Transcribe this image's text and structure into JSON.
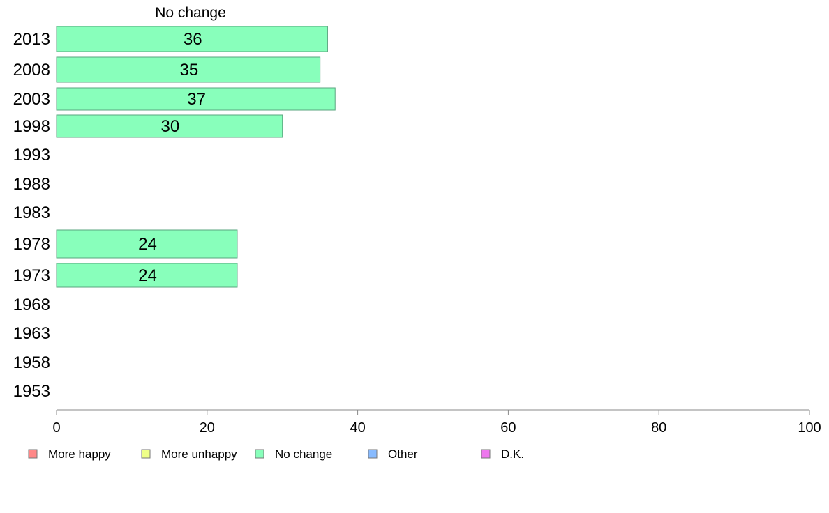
{
  "chart_data": {
    "type": "bar",
    "orientation": "horizontal",
    "title": "No change",
    "xlim": [
      0,
      100
    ],
    "x_ticks": [
      0,
      20,
      40,
      60,
      80,
      100
    ],
    "categories": [
      "2013",
      "2008",
      "2003",
      "1998",
      "1993",
      "1988",
      "1983",
      "1978",
      "1973",
      "1968",
      "1963",
      "1958",
      "1953"
    ],
    "series": [
      {
        "name": "No change",
        "color": "#88ffbb",
        "values": [
          36,
          35,
          37,
          30,
          null,
          null,
          null,
          24,
          24,
          null,
          null,
          null,
          null
        ],
        "value_labels": [
          "36",
          "35",
          "37",
          "30",
          "",
          "",
          "",
          "24",
          "24",
          "",
          "",
          "",
          ""
        ]
      }
    ],
    "legend": {
      "placement": "bottom",
      "items": [
        {
          "label": "More happy",
          "color": "#ff8888"
        },
        {
          "label": "More unhappy",
          "color": "#eeff88"
        },
        {
          "label": "No change",
          "color": "#88ffbb"
        },
        {
          "label": "Other",
          "color": "#88bbff"
        },
        {
          "label": "D.K.",
          "color": "#ee77ee"
        }
      ]
    },
    "grid": false
  }
}
